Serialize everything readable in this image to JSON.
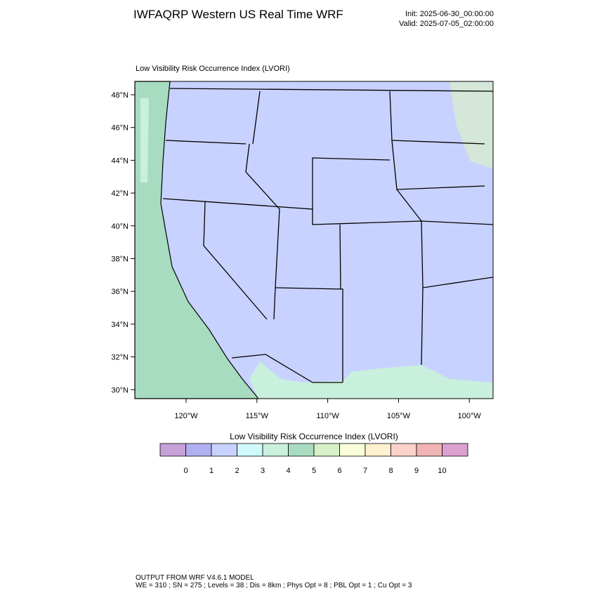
{
  "header": {
    "title": "IWFAQRP Western US Real Time WRF",
    "init": "Init: 2025-06-30_00:00:00",
    "valid": "Valid: 2025-07-05_02:00:00"
  },
  "map": {
    "title": "Low Visibility Risk Occurrence Index   (LVORI)",
    "lat_labels": [
      "48°N",
      "46°N",
      "44°N",
      "42°N",
      "40°N",
      "38°N",
      "36°N",
      "34°N",
      "32°N",
      "30°N"
    ],
    "lon_labels": [
      "120°W",
      "115°W",
      "110°W",
      "105°W",
      "100°W"
    ]
  },
  "colorbar": {
    "title": "Low Visibility Risk Occurrence Index  (LVORI)",
    "labels": [
      "0",
      "1",
      "2",
      "3",
      "4",
      "5",
      "6",
      "7",
      "8",
      "9",
      "10"
    ],
    "colors": [
      "#c8a0d8",
      "#b0b0f0",
      "#c8d2ff",
      "#d0fafa",
      "#c8f0dc",
      "#a8dcc0",
      "#d8f0c8",
      "#f8ffd8",
      "#fff0d0",
      "#fcd2c8",
      "#f0b4b4",
      "#dca0d0"
    ]
  },
  "footer": {
    "line1": "OUTPUT FROM WRF V4.6.1 MODEL",
    "line2": "WE = 310 ; SN = 275 ; Levels = 38 ; Dis = 8km ; Phys Opt = 8 ; PBL Opt = 1 ; Cu Opt = 3"
  }
}
